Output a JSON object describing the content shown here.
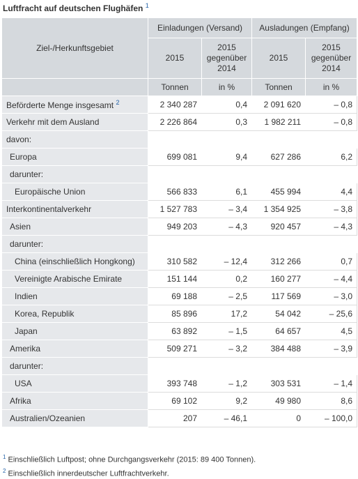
{
  "title": "Luftfracht auf deutschen Flughäfen",
  "title_note": "1",
  "header": {
    "area_label": "Ziel-/Herkunftsgebiet",
    "group1": "Einladungen (Versand)",
    "group2": "Ausladungen (Empfang)",
    "year": "2015",
    "change_line1": "2015",
    "change_line2": "gegenüber",
    "change_line3": "2014",
    "unit_tonnes": "Tonnen",
    "unit_pct": "in %"
  },
  "rows": [
    {
      "label": "Beförderte Menge insgesamt",
      "note": "2",
      "v1": "2 340 287",
      "c1": "0,4",
      "v2": "2 091 620",
      "c2": "– 0,8"
    },
    {
      "label": "Verkehr mit dem Ausland",
      "v1": "2 226 864",
      "c1": "0,3",
      "v2": "1 982 211",
      "c2": "– 0,8"
    },
    {
      "label": "davon:"
    },
    {
      "label": "Europa",
      "v1": "699 081",
      "c1": "9,4",
      "v2": "627 286",
      "c2": "6,2"
    },
    {
      "label": "darunter:"
    },
    {
      "label": "Europäische Union",
      "v1": "566 833",
      "c1": "6,1",
      "v2": "455 994",
      "c2": "4,4"
    },
    {
      "label": "Interkontinentalverkehr",
      "v1": "1 527 783",
      "c1": "– 3,4",
      "v2": "1 354 925",
      "c2": "– 3,8"
    },
    {
      "label": "Asien",
      "v1": "949 203",
      "c1": "– 4,3",
      "v2": "920 457",
      "c2": "– 4,3"
    },
    {
      "label": "darunter:"
    },
    {
      "label": "China (einschließlich Hongkong)",
      "v1": "310 582",
      "c1": "– 12,4",
      "v2": "312 266",
      "c2": "0,7"
    },
    {
      "label": "Vereinigte Arabische Emirate",
      "v1": "151 144",
      "c1": "0,2",
      "v2": "160 277",
      "c2": "– 4,4"
    },
    {
      "label": "Indien",
      "v1": "69 188",
      "c1": "– 2,5",
      "v2": "117 569",
      "c2": "– 3,0"
    },
    {
      "label": "Korea, Republik",
      "v1": "85 896",
      "c1": "17,2",
      "v2": "54 042",
      "c2": "– 25,6"
    },
    {
      "label": "Japan",
      "v1": "63 892",
      "c1": "– 1,5",
      "v2": "64 657",
      "c2": "4,5"
    },
    {
      "label": "Amerika",
      "v1": "509 271",
      "c1": "– 3,2",
      "v2": "384 488",
      "c2": "– 3,9"
    },
    {
      "label": "darunter:"
    },
    {
      "label": "USA",
      "v1": "393 748",
      "c1": "– 1,2",
      "v2": "303 531",
      "c2": "– 1,4"
    },
    {
      "label": "Afrika",
      "v1": "69 102",
      "c1": "9,2",
      "v2": "49 980",
      "c2": "8,6"
    },
    {
      "label": "Australien/Ozeanien",
      "v1": "207",
      "c1": "– 46,1",
      "v2": "0",
      "c2": "– 100,0"
    }
  ],
  "footnotes": [
    {
      "mark": "1",
      "text": "Einschließlich Luftpost; ohne Durchgangsverkehr (2015: 89 400 Tonnen)."
    },
    {
      "mark": "2",
      "text": "Einschließlich innerdeutscher Luftfrachtverkehr."
    }
  ]
}
